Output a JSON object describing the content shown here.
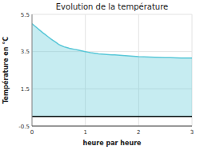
{
  "chart_data": {
    "type": "area",
    "title": "Evolution de la température",
    "xlabel": "heure par heure",
    "ylabel": "Température en °C",
    "x": [
      0,
      0.05,
      0.1,
      0.15,
      0.2,
      0.25,
      0.3,
      0.35,
      0.4,
      0.45,
      0.5,
      0.55,
      0.6,
      0.65,
      0.7,
      0.75,
      0.8,
      0.85,
      0.9,
      0.95,
      1.0,
      1.05,
      1.1,
      1.15,
      1.2,
      1.25,
      1.3,
      1.35,
      1.4,
      1.45,
      1.5,
      1.55,
      1.6,
      1.65,
      1.7,
      1.75,
      1.8,
      1.85,
      1.9,
      1.95,
      2.0,
      2.1,
      2.2,
      2.3,
      2.4,
      2.5,
      2.6,
      2.7,
      2.8,
      2.9,
      3.0
    ],
    "values": [
      5.0,
      4.88,
      4.76,
      4.64,
      4.52,
      4.41,
      4.3,
      4.19,
      4.09,
      3.99,
      3.89,
      3.82,
      3.76,
      3.72,
      3.68,
      3.65,
      3.62,
      3.59,
      3.56,
      3.53,
      3.5,
      3.47,
      3.44,
      3.42,
      3.4,
      3.38,
      3.37,
      3.36,
      3.35,
      3.34,
      3.33,
      3.32,
      3.31,
      3.3,
      3.29,
      3.28,
      3.27,
      3.26,
      3.25,
      3.24,
      3.23,
      3.22,
      3.21,
      3.2,
      3.19,
      3.18,
      3.17,
      3.16,
      3.15,
      3.15,
      3.15
    ],
    "color": "#5bc8d8",
    "xlim": [
      0,
      3
    ],
    "ylim": [
      -0.5,
      5.5
    ],
    "xticks": [
      0,
      1,
      2,
      3
    ],
    "yticks": [
      -0.5,
      1.5,
      3.5,
      5.5
    ],
    "grid": true
  }
}
